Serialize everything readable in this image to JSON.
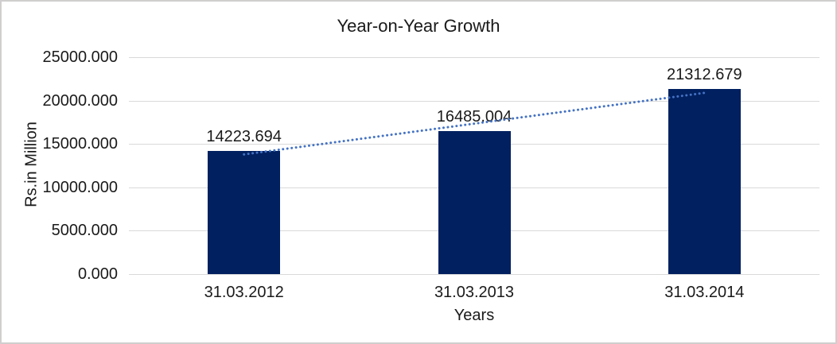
{
  "chart_data": {
    "type": "bar",
    "title": "Year-on-Year Growth",
    "xlabel": "Years",
    "ylabel": "Rs.in Million",
    "categories": [
      "31.03.2012",
      "31.03.2013",
      "31.03.2014"
    ],
    "values": [
      14223.694,
      16485.004,
      21312.679
    ],
    "data_labels": [
      "14223.694",
      "16485.004",
      "21312.679"
    ],
    "y_ticks": [
      "0.000",
      "5000.000",
      "10000.000",
      "15000.000",
      "20000.000",
      "25000.000"
    ],
    "ylim": [
      0,
      25000
    ],
    "y_tick_step": 5000,
    "grid": true,
    "legend": "none",
    "trendline": {
      "type": "linear",
      "style": "dotted"
    },
    "colors": {
      "bar": "#002060",
      "trendline": "#4472C4",
      "gridline": "#d9d9d9",
      "text": "#1a1a1a",
      "border": "#d0cece",
      "background": "#ffffff"
    }
  }
}
